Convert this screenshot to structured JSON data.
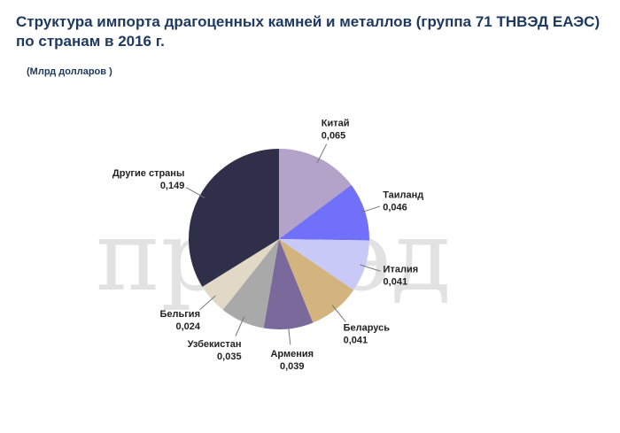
{
  "chart_data": {
    "type": "pie",
    "title": "Структура  импорта драгоценных камней и металлов (группа 71 ТНВЭД ЕАЭС) по странам в 2016 г.",
    "subtitle": "(Млрд долларов )",
    "watermark": "провэд",
    "categories": [
      "Китай",
      "Таиланд",
      "Италия",
      "Беларусь",
      "Армения",
      "Узбекистан",
      "Бельгия",
      "Другие страны"
    ],
    "values": [
      0.065,
      0.046,
      0.041,
      0.041,
      0.039,
      0.035,
      0.024,
      0.149
    ],
    "value_labels": [
      "0,065",
      "0,046",
      "0,041",
      "0,041",
      "0,039",
      "0,035",
      "0,024",
      "0,149"
    ],
    "colors": [
      "#b3a3c8",
      "#7070fb",
      "#c9c9f7",
      "#d3b47e",
      "#7a6a9c",
      "#a9a9a9",
      "#e1d9c6",
      "#2f2f4a"
    ]
  }
}
